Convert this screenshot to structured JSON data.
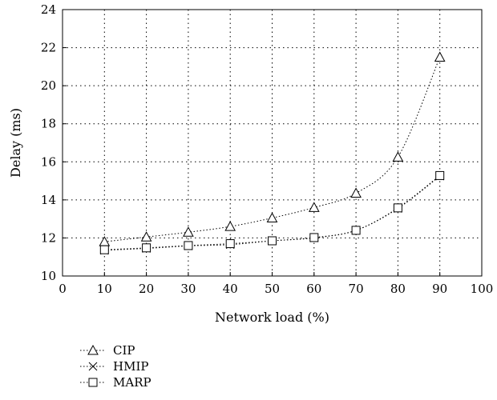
{
  "chart_data": {
    "type": "line",
    "title": "",
    "xlabel": "Network load (%)",
    "ylabel": "Delay (ms)",
    "xlim": [
      0,
      100
    ],
    "ylim": [
      10,
      24
    ],
    "x_ticks": [
      0,
      10,
      20,
      30,
      40,
      50,
      60,
      70,
      80,
      90,
      100
    ],
    "y_ticks": [
      10,
      12,
      14,
      16,
      18,
      20,
      22,
      24
    ],
    "grid": true,
    "grid_style": "dotted",
    "legend_position": "bottom-left below plot",
    "x": [
      10,
      20,
      30,
      40,
      50,
      60,
      70,
      80,
      90
    ],
    "series": [
      {
        "name": "CIP",
        "marker": "triangle",
        "values": [
          11.8,
          12.05,
          12.3,
          12.6,
          13.05,
          13.6,
          14.35,
          16.25,
          21.5
        ]
      },
      {
        "name": "HMIP",
        "marker": "x",
        "values": [
          11.35,
          11.45,
          11.58,
          11.65,
          11.85,
          12.0,
          12.4,
          13.55,
          15.25
        ]
      },
      {
        "name": "MARP",
        "marker": "square",
        "values": [
          11.38,
          11.48,
          11.6,
          11.7,
          11.85,
          12.02,
          12.4,
          13.58,
          15.28
        ]
      }
    ]
  }
}
